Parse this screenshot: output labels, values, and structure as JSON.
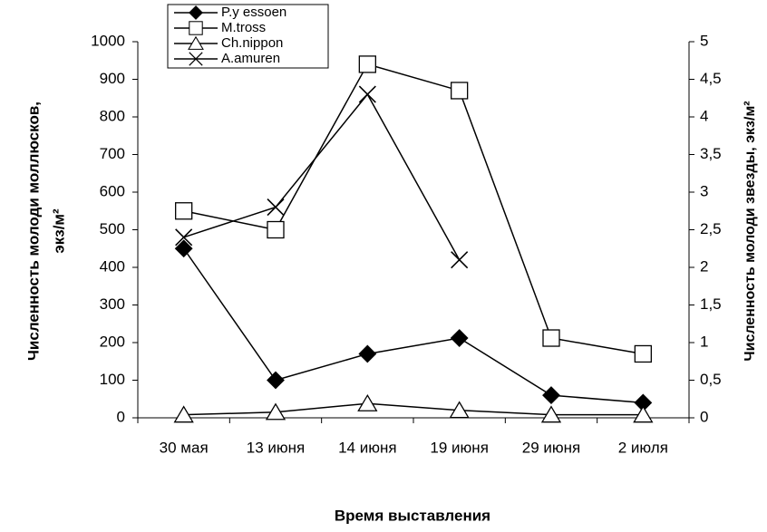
{
  "chart_data": {
    "type": "line",
    "categories": [
      "30 мая",
      "13 июня",
      "14 июня",
      "19 июня",
      "29 июня",
      "2 июля"
    ],
    "series": [
      {
        "name": "P.y essoen",
        "color": "#000000",
        "marker": "diamond",
        "values": [
          450,
          100,
          170,
          212,
          60,
          40
        ]
      },
      {
        "name": "M.tross",
        "color": "#000000",
        "marker": "square",
        "values": [
          550,
          500,
          940,
          870,
          212,
          170
        ]
      },
      {
        "name": "Ch.nippon",
        "color": "#000000",
        "marker": "triangle",
        "values": [
          8,
          15,
          38,
          20,
          8,
          8
        ]
      },
      {
        "name": "A.amuren",
        "color": "#000000",
        "marker": "x",
        "axis": "y2",
        "values": [
          2.4,
          2.8,
          4.3,
          2.1,
          null,
          null
        ]
      }
    ],
    "ylim": [
      0,
      1000
    ],
    "yticks": [
      0,
      100,
      200,
      300,
      400,
      500,
      600,
      700,
      800,
      900,
      1000
    ],
    "y2lim": [
      0,
      5
    ],
    "y2ticks": [
      0,
      {
        "value": 0.5,
        "label": "0,5"
      },
      1,
      {
        "value": 1.5,
        "label": "1,5"
      },
      2,
      {
        "value": 2.5,
        "label": "2,5"
      },
      3,
      {
        "value": 3.5,
        "label": "3,5"
      },
      4,
      {
        "value": 4.5,
        "label": "4,5"
      },
      5
    ],
    "ylabel": [
      "Численность молоди моллюсков,",
      "экз/м²"
    ],
    "y2label": "Численность молоди звезды, экз/м²",
    "xlabel": "Время выставления"
  }
}
